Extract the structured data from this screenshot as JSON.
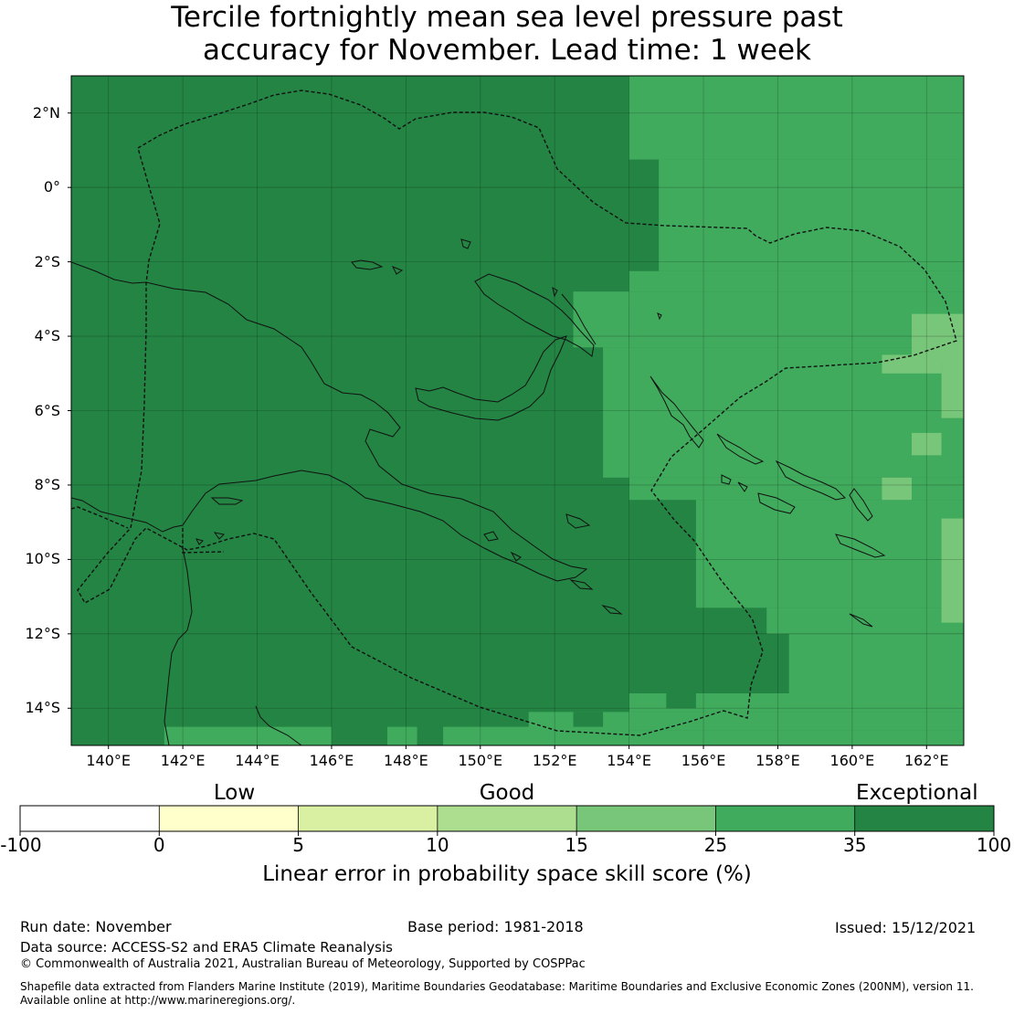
{
  "title_lines": [
    "Tercile fortnightly mean sea level pressure past",
    "accuracy for November. Lead time: 1 week"
  ],
  "map": {
    "lon_range": [
      139,
      163
    ],
    "lat_range": [
      -15,
      3
    ],
    "lat_ticks": [
      {
        "value": 2,
        "label": "2°N"
      },
      {
        "value": 0,
        "label": "0°"
      },
      {
        "value": -2,
        "label": "2°S"
      },
      {
        "value": -4,
        "label": "4°S"
      },
      {
        "value": -6,
        "label": "6°S"
      },
      {
        "value": -8,
        "label": "8°S"
      },
      {
        "value": -10,
        "label": "10°S"
      },
      {
        "value": -12,
        "label": "12°S"
      },
      {
        "value": -14,
        "label": "14°S"
      }
    ],
    "lon_ticks": [
      {
        "value": 140,
        "label": "140°E"
      },
      {
        "value": 142,
        "label": "142°E"
      },
      {
        "value": 144,
        "label": "144°E"
      },
      {
        "value": 146,
        "label": "146°E"
      },
      {
        "value": 148,
        "label": "148°E"
      },
      {
        "value": 150,
        "label": "150°E"
      },
      {
        "value": 152,
        "label": "152°E"
      },
      {
        "value": 154,
        "label": "154°E"
      },
      {
        "value": 156,
        "label": "156°E"
      },
      {
        "value": 158,
        "label": "158°E"
      },
      {
        "value": 160,
        "label": "160°E"
      },
      {
        "value": 162,
        "label": "162°E"
      }
    ],
    "default_level": "exceptional",
    "regions": [
      {
        "level": "good_plus",
        "lon": [
          154.0,
          163.0
        ],
        "lat": [
          0.75,
          3.0
        ]
      },
      {
        "level": "good_plus",
        "lon": [
          154.8,
          163.0
        ],
        "lat": [
          -2.25,
          0.75
        ]
      },
      {
        "level": "good_plus",
        "lon": [
          154.0,
          163.0
        ],
        "lat": [
          -2.8,
          -2.25
        ]
      },
      {
        "level": "good_plus",
        "lon": [
          152.5,
          163.0
        ],
        "lat": [
          -3.2,
          -2.8
        ]
      },
      {
        "level": "good_plus",
        "lon": [
          152.5,
          154.0
        ],
        "lat": [
          -4.3,
          -3.2
        ]
      },
      {
        "level": "good_plus",
        "lon": [
          154.0,
          163.0
        ],
        "lat": [
          -4.3,
          -3.2
        ]
      },
      {
        "level": "good_plus",
        "lon": [
          153.3,
          163.0
        ],
        "lat": [
          -7.8,
          -4.3
        ]
      },
      {
        "level": "good_plus",
        "lon": [
          154.0,
          163.0
        ],
        "lat": [
          -8.4,
          -7.8
        ]
      },
      {
        "level": "good_plus",
        "lon": [
          155.8,
          163.0
        ],
        "lat": [
          -11.3,
          -8.4
        ]
      },
      {
        "level": "good_plus",
        "lon": [
          157.7,
          163.0
        ],
        "lat": [
          -12.0,
          -11.3
        ]
      },
      {
        "level": "good_plus",
        "lon": [
          158.3,
          163.0
        ],
        "lat": [
          -13.6,
          -12.0
        ]
      },
      {
        "level": "good_plus",
        "lon": [
          154.0,
          163.0
        ],
        "lat": [
          -14.1,
          -13.6
        ]
      },
      {
        "level": "good_plus",
        "lon": [
          151.3,
          163.0
        ],
        "lat": [
          -14.6,
          -14.1
        ]
      },
      {
        "level": "good_plus",
        "lon": [
          154.0,
          163.0
        ],
        "lat": [
          -15.0,
          -14.6
        ]
      },
      {
        "level": "exceptional",
        "lon": [
          155.0,
          155.8
        ],
        "lat": [
          -14.0,
          -13.6
        ]
      },
      {
        "level": "exceptional",
        "lon": [
          152.5,
          153.3
        ],
        "lat": [
          -14.6,
          -14.1
        ]
      },
      {
        "level": "good_plus",
        "lon": [
          141.5,
          146.0
        ],
        "lat": [
          -15.0,
          -14.5
        ]
      },
      {
        "level": "good_plus",
        "lon": [
          147.5,
          148.3
        ],
        "lat": [
          -15.0,
          -14.5
        ]
      },
      {
        "level": "good_plus",
        "lon": [
          149.0,
          154.0
        ],
        "lat": [
          -15.0,
          -14.5
        ]
      },
      {
        "level": "good",
        "lon": [
          161.6,
          163.0
        ],
        "lat": [
          -4.7,
          -3.4
        ]
      },
      {
        "level": "good",
        "lon": [
          160.8,
          162.4
        ],
        "lat": [
          -5.0,
          -4.5
        ]
      },
      {
        "level": "good",
        "lon": [
          162.4,
          163.0
        ],
        "lat": [
          -6.2,
          -4.5
        ]
      },
      {
        "level": "good",
        "lon": [
          161.6,
          162.4
        ],
        "lat": [
          -7.2,
          -6.6
        ]
      },
      {
        "level": "good",
        "lon": [
          160.8,
          161.6
        ],
        "lat": [
          -8.4,
          -7.8
        ]
      },
      {
        "level": "good",
        "lon": [
          162.4,
          163.0
        ],
        "lat": [
          -11.7,
          -8.9
        ]
      }
    ]
  },
  "colorbar": {
    "category_labels": [
      {
        "text": "Low",
        "pos": 0.22
      },
      {
        "text": "Good",
        "pos": 0.5
      },
      {
        "text": "Exceptional",
        "pos": 0.921
      }
    ],
    "bins": [
      {
        "from": "-100",
        "to": "0",
        "color": "#ffffff"
      },
      {
        "from": "0",
        "to": "5",
        "color": "#ffffcc"
      },
      {
        "from": "5",
        "to": "10",
        "color": "#d9f0a3"
      },
      {
        "from": "10",
        "to": "15",
        "color": "#addd8e"
      },
      {
        "from": "15",
        "to": "25",
        "color": "#78c679"
      },
      {
        "from": "25",
        "to": "35",
        "color": "#41ab5d"
      },
      {
        "from": "35",
        "to": "100",
        "color": "#238443"
      }
    ],
    "tick_labels": [
      "-100",
      "0",
      "5",
      "10",
      "15",
      "25",
      "35",
      "100"
    ],
    "label": "Linear error in probability space skill score (%)"
  },
  "level_colors": {
    "exceptional": "#238443",
    "good_plus": "#41ab5d",
    "good": "#78c679"
  },
  "footer": {
    "run_date": "Run date: November",
    "base_period": "Base period: 1981-2018",
    "issued": "Issued: 15/12/2021",
    "data_source": "Data source: ACCESS-S2 and ERA5 Climate Reanalysis",
    "copyright": "© Commonwealth of Australia 2021, Australian Bureau of Meteorology, Supported by COSPPac",
    "shapefile_line1": "Shapefile data extracted from Flanders Marine Institute (2019), Maritime Boundaries Geodatabase: Maritime Boundaries and Exclusive Economic Zones (200NM), version 11.",
    "shapefile_line2": "Available online at http://www.marineregions.org/."
  }
}
